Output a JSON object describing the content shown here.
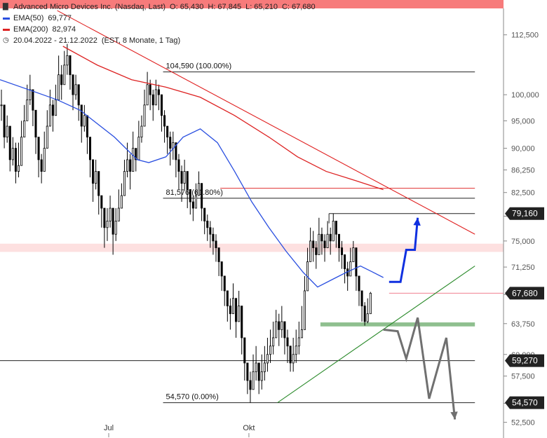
{
  "header": {
    "title": "Advanced Micro Devices Inc. (Nasdaq, Last)",
    "open": "O: 65,430",
    "high": "H: 67,845",
    "low": "L: 65,210",
    "close": "C: 67,680",
    "ema50_label": "EMA(50)",
    "ema50_value": "69,777",
    "ema200_label": "EMA(200)",
    "ema200_value": "82,974",
    "period": "20.04.2022 - 21.12.2022",
    "period_info": "(EST, 8 Monate, 1 Tag)"
  },
  "colors": {
    "candle": "#000000",
    "ema50": "#2a4fe0",
    "ema200": "#dd2222",
    "trend_down": "#e02020",
    "trend_up": "#2a8a2a",
    "support_zone": "#8fbf8f",
    "resistance_zone": "#fde0e0",
    "forecast_up": "#1030e0",
    "forecast_down": "#707070",
    "badge": "#222222",
    "last_price_line": "#f08090"
  },
  "chart_data": {
    "type": "candlestick",
    "y_scale": "log",
    "ylim": [
      51.4,
      118.5
    ],
    "x_range": [
      0,
      176
    ],
    "y_ticks": [
      52.5,
      54.5,
      57.5,
      60,
      63.75,
      67.5,
      71.25,
      75,
      78.75,
      82.5,
      86.25,
      90,
      95,
      100,
      112.5
    ],
    "y_tick_labels": [
      "52,500",
      "54,500",
      "57,500",
      "60,000",
      "63,750",
      "67,500",
      "71,250",
      "75,000",
      "78,750",
      "82,500",
      "86,250",
      "90,000",
      "95,000",
      "100,000",
      "112,500"
    ],
    "x_ticks": [
      {
        "x": 38,
        "label": "Jul"
      },
      {
        "x": 87,
        "label": "Okt"
      }
    ],
    "close": [
      98,
      92,
      94,
      88,
      90,
      86,
      87,
      92,
      95,
      99,
      101,
      97,
      92,
      88,
      86,
      90,
      94,
      98,
      96,
      99,
      104,
      102,
      106,
      108,
      104,
      100,
      102,
      98,
      94,
      96,
      92,
      88,
      84,
      86,
      82,
      80,
      77,
      78,
      80,
      76,
      78,
      80,
      82,
      86,
      88,
      86,
      90,
      88,
      92,
      94,
      98,
      102,
      100,
      98,
      101,
      100,
      96,
      94,
      92,
      90,
      91,
      88,
      86,
      84,
      86,
      83,
      81,
      80,
      82,
      84,
      80,
      78,
      77,
      76,
      75,
      74,
      72,
      70,
      68,
      66,
      65,
      67,
      64,
      66,
      62,
      59,
      57,
      56,
      58,
      59,
      57,
      58,
      59,
      60,
      61,
      62,
      64,
      63,
      64,
      62,
      61,
      59,
      60,
      61,
      62,
      63,
      68,
      72,
      75,
      74,
      73,
      76,
      75,
      74,
      76,
      75,
      78,
      76,
      74,
      73,
      71,
      70,
      72,
      74,
      70,
      68,
      66,
      64,
      65,
      67.68
    ],
    "high": [
      101,
      97,
      96,
      93,
      92,
      91,
      91,
      95,
      98,
      102,
      104,
      101,
      97,
      91,
      89,
      93,
      97,
      101,
      99,
      102,
      108,
      106,
      109,
      110.5,
      107,
      103,
      104,
      101,
      97,
      98,
      96,
      91,
      87,
      88,
      86,
      82,
      80,
      80,
      82,
      79,
      80,
      83,
      84,
      88,
      91,
      89,
      93,
      90,
      95,
      96,
      101,
      104.59,
      103,
      101,
      103,
      102,
      99,
      97,
      94,
      93,
      93,
      91,
      89,
      87,
      88,
      86,
      83,
      82,
      84,
      86,
      83,
      80,
      79,
      78,
      77,
      76,
      74,
      72,
      70,
      68,
      67,
      69,
      67,
      68,
      64,
      61,
      59,
      58,
      60,
      61,
      59,
      60,
      61,
      62,
      63,
      64,
      65.5,
      65,
      66,
      64,
      63,
      61,
      62,
      63,
      64,
      66,
      70,
      74,
      77,
      76.5,
      75,
      78.5,
      77,
      76,
      78,
      77,
      79.16,
      78,
      76,
      75,
      73,
      72,
      74,
      75,
      72,
      70,
      68,
      66.5,
      67,
      67.85
    ],
    "low": [
      95,
      90,
      91,
      86,
      87,
      84,
      85,
      89,
      92,
      96,
      98,
      94,
      89,
      85,
      84,
      87,
      91,
      95,
      93,
      96,
      101,
      99,
      103,
      104,
      101,
      97,
      99,
      95,
      91,
      93,
      89,
      85,
      81,
      83,
      79,
      77,
      74,
      75,
      77,
      73,
      75,
      78,
      80,
      83,
      85,
      83,
      86,
      86,
      89,
      91,
      95,
      99,
      97,
      95,
      98,
      97,
      93,
      91,
      89,
      87,
      88,
      85,
      83,
      81,
      83,
      80,
      79,
      78,
      80,
      82,
      78,
      76,
      75,
      74,
      73,
      72,
      70,
      68,
      66,
      64,
      63,
      65,
      62,
      64,
      60,
      57,
      55.5,
      54.57,
      56,
      57,
      55.5,
      56,
      57,
      58,
      59,
      60,
      62,
      61,
      62,
      60,
      59,
      58,
      58,
      59,
      60,
      62,
      66,
      70,
      73,
      72,
      71,
      74,
      73,
      72,
      74,
      73,
      76,
      74,
      72,
      71,
      69,
      68,
      70,
      72,
      68,
      66,
      64,
      63.5,
      63.8,
      65.21
    ],
    "ema50": [
      {
        "x": 0,
        "y": 103
      },
      {
        "x": 10,
        "y": 101
      },
      {
        "x": 20,
        "y": 99
      },
      {
        "x": 28,
        "y": 97
      },
      {
        "x": 40,
        "y": 92
      },
      {
        "x": 48,
        "y": 88
      },
      {
        "x": 52,
        "y": 87.5
      },
      {
        "x": 58,
        "y": 88.5
      },
      {
        "x": 64,
        "y": 92
      },
      {
        "x": 70,
        "y": 93.5
      },
      {
        "x": 76,
        "y": 91
      },
      {
        "x": 82,
        "y": 86
      },
      {
        "x": 88,
        "y": 81
      },
      {
        "x": 94,
        "y": 77
      },
      {
        "x": 100,
        "y": 73.5
      },
      {
        "x": 106,
        "y": 70.5
      },
      {
        "x": 111,
        "y": 68.5
      },
      {
        "x": 116,
        "y": 69.5
      },
      {
        "x": 121,
        "y": 70.5
      },
      {
        "x": 126,
        "y": 71.4
      },
      {
        "x": 130,
        "y": 70.6
      },
      {
        "x": 134,
        "y": 69.8
      }
    ],
    "ema200": [
      {
        "x": 22,
        "y": 110
      },
      {
        "x": 34,
        "y": 106
      },
      {
        "x": 46,
        "y": 103
      },
      {
        "x": 58,
        "y": 101.5
      },
      {
        "x": 70,
        "y": 99.5
      },
      {
        "x": 82,
        "y": 96
      },
      {
        "x": 94,
        "y": 92
      },
      {
        "x": 104,
        "y": 88.5
      },
      {
        "x": 114,
        "y": 86
      },
      {
        "x": 124,
        "y": 84.5
      },
      {
        "x": 134,
        "y": 82.97
      }
    ],
    "trendline_down": [
      {
        "x": 20,
        "y": 118
      },
      {
        "x": 166,
        "y": 76
      }
    ],
    "trendline_up": [
      {
        "x": 97,
        "y": 54.57
      },
      {
        "x": 166,
        "y": 71.4
      }
    ],
    "horizontal_levels": [
      {
        "y": 104.59,
        "x0": 57,
        "x1": 166,
        "label": "104,590 (100.00%)"
      },
      {
        "y": 81.576,
        "x0": 57,
        "x1": 166,
        "label": "81,576 (61.80%)"
      },
      {
        "y": 59.27,
        "x0": 0,
        "x1": 166,
        "label": ""
      },
      {
        "y": 54.57,
        "x0": 57,
        "x1": 166,
        "label": "54,570 (0.00%)"
      }
    ],
    "resistance_line": {
      "y": 83.2,
      "x0": 77,
      "x1": 166
    },
    "high_line": {
      "y": 79.16,
      "x0": 115,
      "x1": 166
    },
    "resistance_zone": [
      73.4,
      74.6
    ],
    "support_zone": [
      63.4,
      63.9,
      112,
      166
    ],
    "last_price": 67.68,
    "forecast_up": [
      {
        "x": 136,
        "y": 69.2
      },
      {
        "x": 140,
        "y": 69.2
      },
      {
        "x": 142,
        "y": 73.7
      },
      {
        "x": 145,
        "y": 73.7
      },
      {
        "x": 146,
        "y": 78.5
      }
    ],
    "forecast_down": [
      {
        "x": 134,
        "y": 63
      },
      {
        "x": 139,
        "y": 62.8
      },
      {
        "x": 142,
        "y": 59.5
      },
      {
        "x": 146,
        "y": 64.5
      },
      {
        "x": 150,
        "y": 55
      },
      {
        "x": 156,
        "y": 62
      },
      {
        "x": 159,
        "y": 52.8
      }
    ],
    "price_badges": [
      {
        "value": 79.16,
        "label": "79,160"
      },
      {
        "value": 67.68,
        "label": "67,680"
      },
      {
        "value": 59.27,
        "label": "59,270"
      },
      {
        "value": 54.57,
        "label": "54,570"
      }
    ]
  }
}
